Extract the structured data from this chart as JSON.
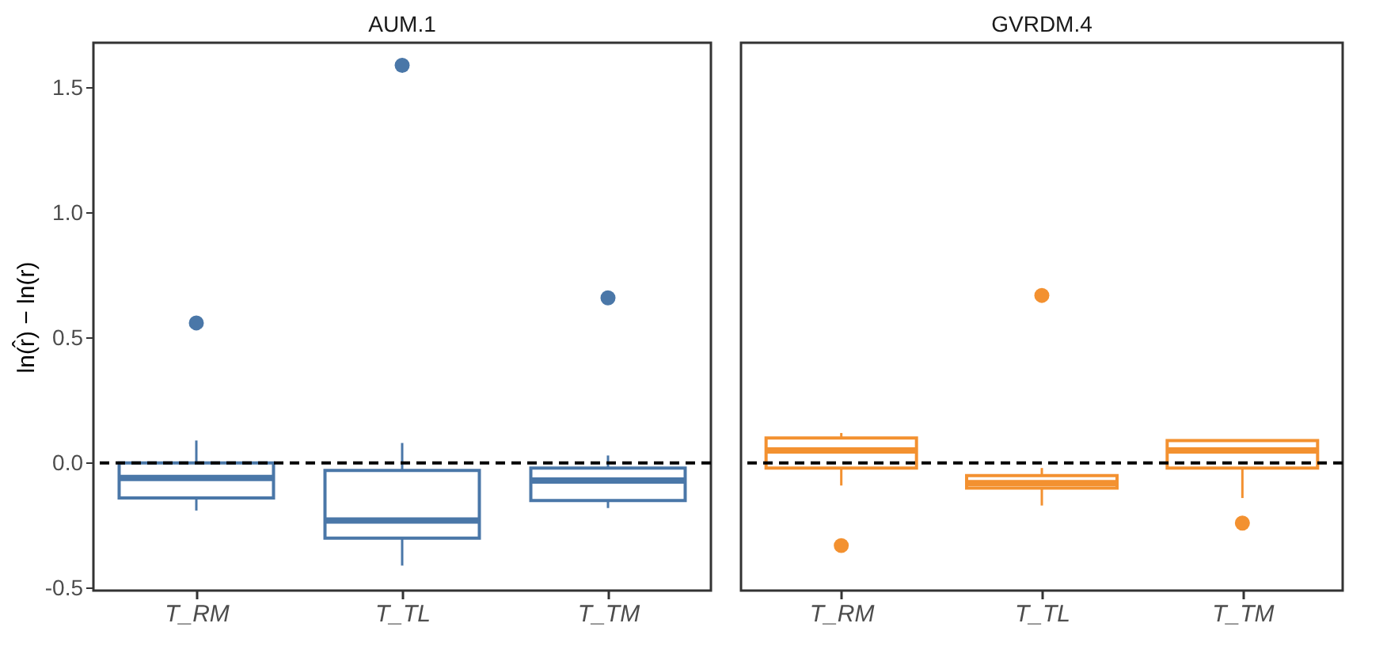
{
  "chart_data": [
    {
      "type": "box",
      "title": "AUM.1",
      "ylabel": "ln(r̂) − ln(r)",
      "categories": [
        "T_RM",
        "T_TL",
        "T_TM"
      ],
      "color": "#4a77a8",
      "boxes": [
        {
          "low": -0.19,
          "q1": -0.14,
          "median": -0.06,
          "q3": 0.0,
          "high": 0.09,
          "outliers": [
            0.56
          ]
        },
        {
          "low": -0.41,
          "q1": -0.3,
          "median": -0.23,
          "q3": -0.03,
          "high": 0.08,
          "outliers": [
            1.59
          ]
        },
        {
          "low": -0.18,
          "q1": -0.15,
          "median": -0.07,
          "q3": -0.02,
          "high": 0.03,
          "outliers": [
            0.66
          ]
        }
      ],
      "ylim": [
        -0.51,
        1.68
      ],
      "yticks": [
        {
          "value": -0.5,
          "label": "-0.5"
        },
        {
          "value": 0,
          "label": "0.0"
        },
        0.5,
        {
          "value": 1,
          "label": "1.0"
        },
        1.5
      ],
      "ref_lines": [
        {
          "axis": "y",
          "value": 0,
          "color": "#000000",
          "line_style": "dashed"
        }
      ],
      "grid": false
    },
    {
      "type": "box",
      "title": "GVRDM.4",
      "categories": [
        "T_RM",
        "T_TL",
        "T_TM"
      ],
      "color": "#f39130",
      "boxes": [
        {
          "low": -0.09,
          "q1": -0.02,
          "median": 0.05,
          "q3": 0.1,
          "high": 0.12,
          "outliers": [
            -0.33
          ]
        },
        {
          "low": -0.17,
          "q1": -0.1,
          "median": -0.08,
          "q3": -0.05,
          "high": -0.02,
          "outliers": [
            0.67
          ]
        },
        {
          "low": -0.14,
          "q1": -0.02,
          "median": 0.05,
          "q3": 0.09,
          "high": 0.09,
          "outliers": [
            -0.24
          ]
        }
      ],
      "ylim": [
        -0.51,
        1.68
      ],
      "ref_lines": [
        {
          "axis": "y",
          "value": 0,
          "color": "#000000",
          "line_style": "dashed"
        }
      ],
      "grid": false,
      "tick_labels": "x"
    }
  ]
}
